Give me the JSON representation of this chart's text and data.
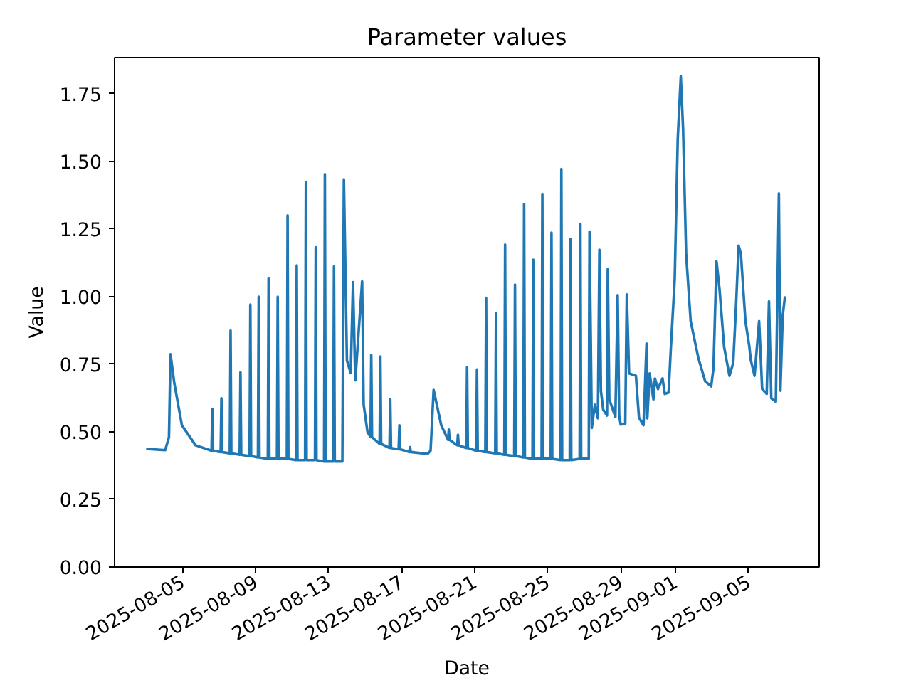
{
  "chart_data": {
    "type": "line",
    "title": "Parameter values",
    "xlabel": "Date",
    "ylabel": "Value",
    "grid": false,
    "xlim": [
      "2025-08-01T06:30",
      "2025-09-08T21:00"
    ],
    "xticks": [
      "2025-08-05",
      "2025-08-09",
      "2025-08-13",
      "2025-08-17",
      "2025-08-21",
      "2025-08-25",
      "2025-08-29",
      "2025-09-01",
      "2025-09-05"
    ],
    "ylim": [
      0,
      1.883
    ],
    "yticks": [
      {
        "value": 0,
        "label": "0.00"
      },
      {
        "value": 0.25,
        "label": "0.25"
      },
      {
        "value": 0.5,
        "label": "0.50"
      },
      {
        "value": 0.75,
        "label": "0.75"
      },
      {
        "value": 1.0,
        "label": "1.00"
      },
      {
        "value": 1.25,
        "label": "1.25"
      },
      {
        "value": 1.5,
        "label": "1.50"
      },
      {
        "value": 1.75,
        "label": "1.75"
      }
    ],
    "series": [
      {
        "color": "#1f77b4",
        "x": [
          "2025-08-03T00:00",
          "2025-08-04T01:00",
          "2025-08-04T06:00",
          "2025-08-04T08:00",
          "2025-08-04T13:00",
          "2025-08-04T23:00",
          "2025-08-05T17:00",
          "2025-08-06T14:00",
          "2025-08-06T15:00",
          "2025-08-06T16:00",
          "2025-08-07T02:00",
          "2025-08-07T03:00",
          "2025-08-07T04:00",
          "2025-08-07T14:00",
          "2025-08-07T15:00",
          "2025-08-07T16:00",
          "2025-08-08T03:00",
          "2025-08-08T04:00",
          "2025-08-08T05:00",
          "2025-08-08T16:00",
          "2025-08-08T17:00",
          "2025-08-08T18:00",
          "2025-08-09T03:00",
          "2025-08-09T04:00",
          "2025-08-09T05:00",
          "2025-08-09T16:00",
          "2025-08-09T17:00",
          "2025-08-09T18:00",
          "2025-08-10T04:00",
          "2025-08-10T05:00",
          "2025-08-10T06:00",
          "2025-08-10T17:00",
          "2025-08-10T18:00",
          "2025-08-10T19:00",
          "2025-08-11T05:00",
          "2025-08-11T06:00",
          "2025-08-11T07:00",
          "2025-08-11T17:00",
          "2025-08-11T18:00",
          "2025-08-11T19:00",
          "2025-08-12T06:00",
          "2025-08-12T07:00",
          "2025-08-12T08:00",
          "2025-08-12T18:00",
          "2025-08-12T19:00",
          "2025-08-12T20:00",
          "2025-08-13T06:00",
          "2025-08-13T07:00",
          "2025-08-13T08:00",
          "2025-08-13T18:00",
          "2025-08-13T20:00",
          "2025-08-14T00:00",
          "2025-08-14T05:00",
          "2025-08-14T08:00",
          "2025-08-14T11:00",
          "2025-08-14T20:00",
          "2025-08-14T22:00",
          "2025-08-15T03:00",
          "2025-08-15T07:00",
          "2025-08-15T08:00",
          "2025-08-15T09:00",
          "2025-08-15T19:00",
          "2025-08-15T20:00",
          "2025-08-15T21:00",
          "2025-08-16T08:00",
          "2025-08-16T09:00",
          "2025-08-16T10:00",
          "2025-08-16T20:00",
          "2025-08-16T21:00",
          "2025-08-16T22:00",
          "2025-08-17T10:00",
          "2025-08-17T11:00",
          "2025-08-17T12:00",
          "2025-08-18T10:00",
          "2025-08-18T14:00",
          "2025-08-18T18:00",
          "2025-08-19T04:00",
          "2025-08-19T13:00",
          "2025-08-19T14:00",
          "2025-08-19T15:00",
          "2025-08-20T01:00",
          "2025-08-20T02:00",
          "2025-08-20T03:00",
          "2025-08-20T13:00",
          "2025-08-20T14:00",
          "2025-08-20T15:00",
          "2025-08-21T02:00",
          "2025-08-21T03:00",
          "2025-08-21T04:00",
          "2025-08-21T14:00",
          "2025-08-21T15:00",
          "2025-08-21T16:00",
          "2025-08-22T03:00",
          "2025-08-22T04:00",
          "2025-08-22T05:00",
          "2025-08-22T15:00",
          "2025-08-22T16:00",
          "2025-08-22T17:00",
          "2025-08-23T04:00",
          "2025-08-23T05:00",
          "2025-08-23T06:00",
          "2025-08-23T16:00",
          "2025-08-23T17:00",
          "2025-08-23T18:00",
          "2025-08-24T04:00",
          "2025-08-24T05:00",
          "2025-08-24T06:00",
          "2025-08-24T16:00",
          "2025-08-24T17:00",
          "2025-08-24T18:00",
          "2025-08-25T04:00",
          "2025-08-25T05:00",
          "2025-08-25T06:00",
          "2025-08-25T17:00",
          "2025-08-25T18:00",
          "2025-08-25T19:00",
          "2025-08-26T05:00",
          "2025-08-26T06:00",
          "2025-08-26T07:00",
          "2025-08-26T18:00",
          "2025-08-26T19:00",
          "2025-08-26T20:00",
          "2025-08-27T06:00",
          "2025-08-27T07:00",
          "2025-08-27T10:00",
          "2025-08-27T14:00",
          "2025-08-27T18:00",
          "2025-08-27T20:00",
          "2025-08-27T22:00",
          "2025-08-28T01:00",
          "2025-08-28T06:00",
          "2025-08-28T07:00",
          "2025-08-28T09:00",
          "2025-08-28T17:00",
          "2025-08-28T20:00",
          "2025-08-28T22:00",
          "2025-08-29T00:00",
          "2025-08-29T06:00",
          "2025-08-29T08:00",
          "2025-08-29T11:00",
          "2025-08-29T20:00",
          "2025-08-30T00:00",
          "2025-08-30T06:00",
          "2025-08-30T10:00",
          "2025-08-30T11:00",
          "2025-08-30T14:00",
          "2025-08-30T19:00",
          "2025-08-30T21:00",
          "2025-08-31T01:00",
          "2025-08-31T07:00",
          "2025-08-31T10:00",
          "2025-08-31T15:00",
          "2025-08-31T18:00",
          "2025-08-31T23:00",
          "2025-09-01T03:00",
          "2025-09-01T07:00",
          "2025-09-01T10:00",
          "2025-09-01T14:00",
          "2025-09-01T20:00",
          "2025-09-02T06:00",
          "2025-09-02T15:00",
          "2025-09-02T23:00",
          "2025-09-03T02:00",
          "2025-09-03T06:00",
          "2025-09-03T10:00",
          "2025-09-03T16:00",
          "2025-09-03T23:00",
          "2025-09-04T04:00",
          "2025-09-04T08:00",
          "2025-09-04T11:00",
          "2025-09-04T14:00",
          "2025-09-04T20:00",
          "2025-09-05T01:00",
          "2025-09-05T03:00",
          "2025-09-05T08:00",
          "2025-09-05T14:00",
          "2025-09-05T18:00",
          "2025-09-06T00:00",
          "2025-09-06T03:00",
          "2025-09-06T06:00",
          "2025-09-06T12:00",
          "2025-09-06T16:00",
          "2025-09-06T18:00",
          "2025-09-06T21:00",
          "2025-09-07T00:00"
        ],
        "values": [
          0.437,
          0.432,
          0.48,
          0.787,
          0.68,
          0.524,
          0.45,
          0.43,
          0.585,
          0.43,
          0.425,
          0.624,
          0.425,
          0.42,
          0.874,
          0.42,
          0.415,
          0.72,
          0.415,
          0.41,
          0.97,
          0.41,
          0.405,
          0.999,
          0.405,
          0.4,
          1.067,
          0.4,
          0.4,
          0.999,
          0.4,
          0.4,
          1.3,
          0.4,
          0.395,
          1.115,
          0.395,
          0.395,
          1.421,
          0.395,
          0.395,
          1.182,
          0.395,
          0.39,
          1.452,
          0.39,
          0.39,
          1.111,
          0.39,
          0.39,
          1.433,
          0.764,
          0.717,
          1.053,
          0.69,
          1.056,
          0.6,
          0.5,
          0.48,
          0.784,
          0.48,
          0.455,
          0.778,
          0.455,
          0.44,
          0.62,
          0.44,
          0.435,
          0.524,
          0.435,
          0.425,
          0.443,
          0.425,
          0.418,
          0.43,
          0.655,
          0.524,
          0.47,
          0.508,
          0.47,
          0.45,
          0.489,
          0.45,
          0.44,
          0.739,
          0.44,
          0.43,
          0.73,
          0.43,
          0.425,
          0.995,
          0.425,
          0.42,
          0.938,
          0.42,
          0.415,
          1.192,
          0.415,
          0.41,
          1.044,
          0.41,
          0.405,
          1.342,
          0.405,
          0.4,
          1.136,
          0.4,
          0.4,
          1.379,
          0.4,
          0.4,
          1.236,
          0.4,
          0.395,
          1.471,
          0.395,
          0.395,
          1.213,
          0.395,
          0.4,
          1.269,
          0.4,
          0.4,
          1.24,
          0.514,
          0.6,
          0.55,
          1.173,
          0.65,
          0.582,
          0.56,
          1.102,
          0.62,
          0.555,
          1.005,
          0.56,
          0.527,
          0.53,
          1.008,
          0.716,
          0.707,
          0.553,
          0.524,
          0.826,
          0.55,
          0.716,
          0.62,
          0.697,
          0.658,
          0.697,
          0.64,
          0.645,
          0.813,
          1.063,
          1.583,
          1.814,
          1.621,
          1.159,
          0.909,
          0.774,
          0.687,
          0.668,
          0.735,
          1.13,
          1.025,
          0.813,
          0.707,
          0.755,
          0.987,
          1.188,
          1.159,
          0.909,
          0.818,
          0.766,
          0.707,
          0.909,
          0.658,
          0.64,
          0.982,
          0.624,
          0.611,
          1.381,
          0.652,
          0.928,
          1.001
        ]
      }
    ]
  }
}
